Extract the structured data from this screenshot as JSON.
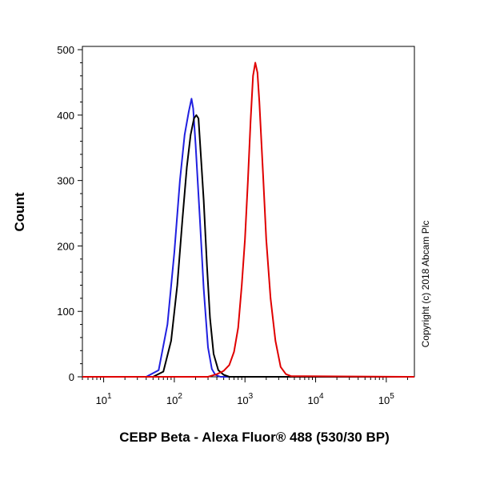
{
  "chart_data": {
    "type": "line",
    "title": "",
    "xlabel": "CEBP Beta - Alexa Fluor® 488 (530/30 BP)",
    "ylabel": "Count",
    "xscale": "log",
    "xlim": [
      5,
      250000
    ],
    "ylim": [
      0,
      505
    ],
    "xticks": [
      {
        "value": 10,
        "base": "10",
        "exp": "1"
      },
      {
        "value": 100,
        "base": "10",
        "exp": "2"
      },
      {
        "value": 1000,
        "base": "10",
        "exp": "3"
      },
      {
        "value": 10000,
        "base": "10",
        "exp": "4"
      },
      {
        "value": 100000,
        "base": "10",
        "exp": "5"
      }
    ],
    "yticks": [
      0,
      100,
      200,
      300,
      400,
      500
    ],
    "grid": false,
    "legend": "none",
    "series": [
      {
        "color": "#2020e0",
        "x": [
          5,
          40,
          60,
          80,
          100,
          120,
          140,
          160,
          175,
          185,
          200,
          230,
          260,
          300,
          340,
          380,
          450,
          250000
        ],
        "y": [
          0,
          0,
          10,
          80,
          190,
          300,
          370,
          405,
          425,
          410,
          355,
          240,
          135,
          45,
          12,
          3,
          0,
          0
        ]
      },
      {
        "color": "#000000",
        "x": [
          5,
          50,
          70,
          90,
          110,
          130,
          150,
          170,
          190,
          205,
          220,
          240,
          260,
          290,
          320,
          360,
          420,
          500,
          600,
          250000
        ],
        "y": [
          0,
          0,
          8,
          55,
          140,
          240,
          320,
          370,
          395,
          400,
          395,
          330,
          270,
          170,
          90,
          35,
          10,
          3,
          0,
          0
        ]
      },
      {
        "color": "#e00000",
        "x": [
          5,
          300,
          400,
          500,
          600,
          700,
          800,
          900,
          1000,
          1100,
          1200,
          1300,
          1400,
          1500,
          1600,
          1800,
          2000,
          2300,
          2700,
          3200,
          3800,
          4500,
          250000
        ],
        "y": [
          0,
          0,
          4,
          9,
          18,
          38,
          75,
          140,
          210,
          300,
          390,
          460,
          480,
          465,
          420,
          310,
          210,
          120,
          55,
          15,
          4,
          1,
          0
        ]
      }
    ]
  },
  "copyright": "Copyright (c) 2018 Abcam Plc"
}
